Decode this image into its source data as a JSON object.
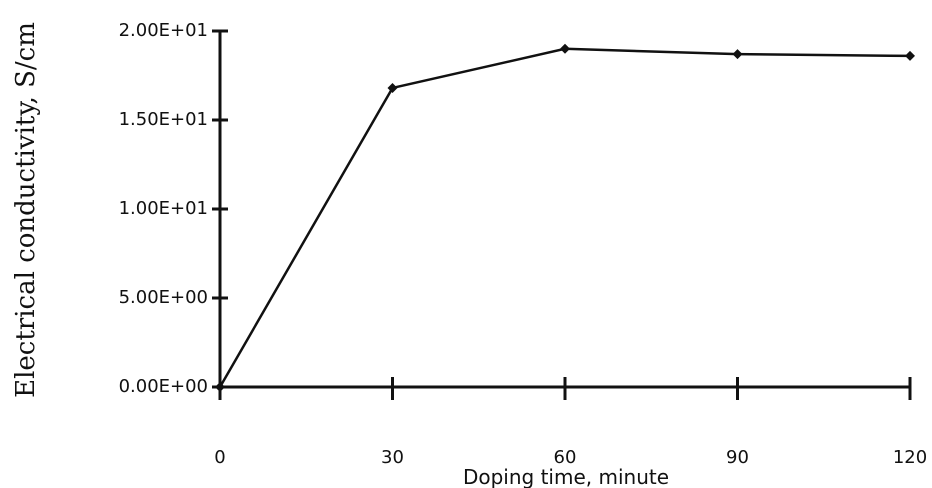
{
  "chart_data": {
    "type": "line",
    "title": "",
    "xlabel": "Doping time, minute",
    "ylabel": "Electrical conductivity, S/cm",
    "x": [
      0,
      30,
      60,
      90,
      120
    ],
    "x_ticks": [
      "0",
      "30",
      "60",
      "90",
      "120"
    ],
    "y_ticks": [
      "0.00E+00",
      "5.00E+00",
      "1.00E+01",
      "1.50E+01",
      "2.00E+01"
    ],
    "y_tick_values": [
      0,
      5,
      10,
      15,
      20
    ],
    "xlim": [
      0,
      120
    ],
    "ylim": [
      0,
      20
    ],
    "grid": false,
    "series": [
      {
        "values": [
          0,
          16.8,
          19.0,
          18.7,
          18.6
        ],
        "color": "#111111",
        "marker": "diamond"
      }
    ]
  }
}
